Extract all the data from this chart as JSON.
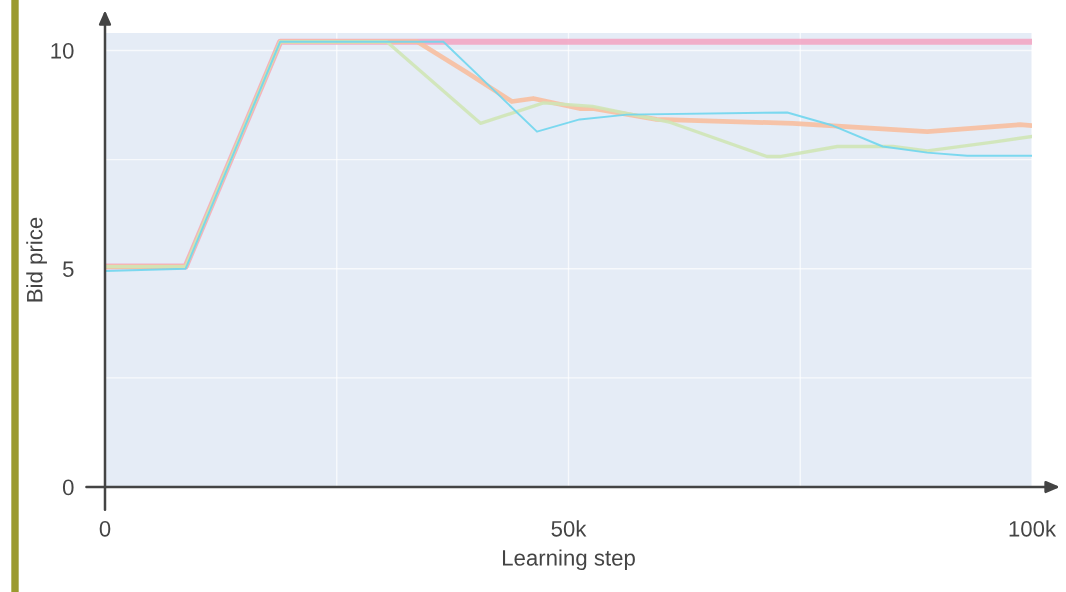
{
  "chart_data": {
    "type": "line",
    "xlabel": "Learning step",
    "ylabel": "Bid price",
    "xlim": [
      0,
      100000
    ],
    "ylim": [
      0,
      10.4
    ],
    "xticks": [
      {
        "value": 0,
        "label": "0"
      },
      {
        "value": 25000,
        "label": null
      },
      {
        "value": 50000,
        "label": "50k"
      },
      {
        "value": 75000,
        "label": null
      },
      {
        "value": 100000,
        "label": "100k"
      }
    ],
    "yticks": [
      0,
      {
        "value": 2.5,
        "label": null
      },
      5,
      {
        "value": 7.5,
        "label": null
      },
      10
    ],
    "grid": true,
    "marker": "none",
    "line_style": "solid",
    "series": [
      {
        "color": "#f2a7c4",
        "x": [
          0,
          8700,
          18900,
          100000
        ],
        "values": [
          5.05,
          5.05,
          10.2,
          10.2
        ]
      },
      {
        "color": "#f7bfa0",
        "x": [
          0,
          8700,
          18900,
          33700,
          39000,
          43900,
          46200,
          51200,
          52600,
          59500,
          74200,
          88700,
          98700,
          100000
        ],
        "values": [
          5.05,
          5.05,
          10.2,
          10.2,
          9.5,
          8.83,
          8.9,
          8.67,
          8.67,
          8.42,
          8.33,
          8.14,
          8.3,
          8.28
        ]
      },
      {
        "color": "#cfe6b6",
        "x": [
          0,
          8700,
          18900,
          30400,
          40500,
          47300,
          52600,
          61000,
          71400,
          72800,
          79000,
          85000,
          88700,
          95800,
          100000
        ],
        "values": [
          5.05,
          5.05,
          10.2,
          10.2,
          8.33,
          8.8,
          8.72,
          8.35,
          7.57,
          7.57,
          7.8,
          7.8,
          7.7,
          7.9,
          8.03
        ]
      },
      {
        "color": "#6fd6ee",
        "x": [
          0,
          8700,
          18900,
          36500,
          46600,
          51200,
          56300,
          73600,
          78500,
          83900,
          88700,
          93000,
          100000
        ],
        "values": [
          4.95,
          5.0,
          10.2,
          10.2,
          8.14,
          8.42,
          8.53,
          8.58,
          8.28,
          7.8,
          7.66,
          7.59,
          7.59
        ]
      }
    ]
  }
}
